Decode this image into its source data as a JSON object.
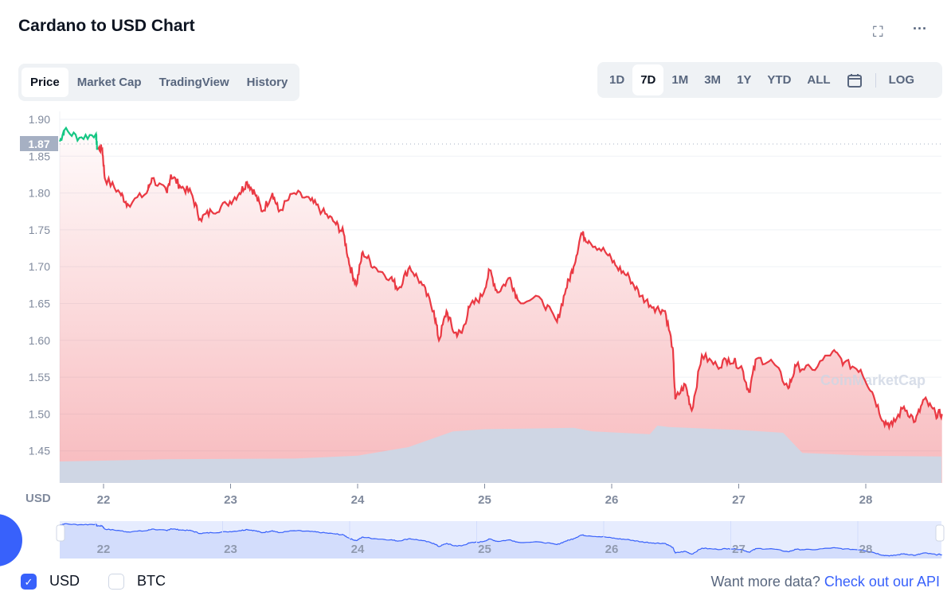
{
  "header": {
    "title": "Cardano to USD Chart",
    "fullscreen_icon": "fullscreen-icon",
    "more_icon": "more-icon"
  },
  "tabs": [
    {
      "label": "Price",
      "active": true
    },
    {
      "label": "Market Cap"
    },
    {
      "label": "TradingView"
    },
    {
      "label": "History"
    }
  ],
  "ranges": [
    {
      "label": "1D"
    },
    {
      "label": "7D",
      "active": true
    },
    {
      "label": "1M"
    },
    {
      "label": "3M"
    },
    {
      "label": "1Y"
    },
    {
      "label": "YTD"
    },
    {
      "label": "ALL"
    }
  ],
  "calendar_icon": "calendar-icon",
  "log_label": "LOG",
  "watermark": "CoinMarketCap",
  "legend": {
    "usd": "USD",
    "btc": "BTC",
    "usd_checked": true,
    "btc_checked": false
  },
  "api": {
    "text": "Want more data?",
    "link": "Check out our API"
  },
  "colors": {
    "up": "#16c784",
    "down": "#ea3943",
    "accent": "#3861fb",
    "volume": "#cfd6e4"
  },
  "chart_data": {
    "type": "line",
    "title": "Cardano to USD Chart",
    "ylabel": "USD",
    "ylim": [
      1.43,
      1.905
    ],
    "yticks": [
      "1.90",
      "1.85",
      "1.80",
      "1.75",
      "1.70",
      "1.65",
      "1.60",
      "1.55",
      "1.50",
      "1.45"
    ],
    "xticks": [
      "22",
      "23",
      "24",
      "25",
      "26",
      "27",
      "28"
    ],
    "xlim": [
      21.65,
      28.6
    ],
    "reference_price": "1.87",
    "grid": true,
    "x": [
      21.655,
      21.69,
      21.81,
      21.94,
      21.95,
      21.99,
      22.01,
      22.13,
      22.19,
      22.34,
      22.38,
      22.5,
      22.53,
      22.6,
      22.69,
      22.76,
      22.85,
      22.97,
      23.07,
      23.13,
      23.19,
      23.25,
      23.33,
      23.38,
      23.5,
      23.63,
      23.72,
      23.82,
      23.89,
      23.94,
      23.99,
      24.04,
      24.13,
      24.26,
      24.32,
      24.41,
      24.51,
      24.6,
      24.64,
      24.7,
      24.76,
      24.82,
      24.88,
      24.98,
      25.04,
      25.1,
      25.2,
      25.26,
      25.45,
      25.57,
      25.64,
      25.7,
      25.76,
      25.82,
      25.95,
      26.04,
      26.14,
      26.23,
      26.33,
      26.42,
      26.48,
      26.5,
      26.58,
      26.63,
      26.71,
      26.83,
      26.92,
      27.02,
      27.08,
      27.14,
      27.27,
      27.39,
      27.45,
      27.58,
      27.74,
      27.83,
      27.96,
      28.05,
      28.14,
      28.21,
      28.3,
      28.39,
      28.46,
      28.55,
      28.6
    ],
    "price": [
      1.87,
      1.885,
      1.875,
      1.88,
      1.86,
      1.86,
      1.82,
      1.8,
      1.785,
      1.8,
      1.82,
      1.8,
      1.825,
      1.81,
      1.8,
      1.765,
      1.775,
      1.785,
      1.8,
      1.815,
      1.8,
      1.775,
      1.8,
      1.775,
      1.8,
      1.79,
      1.775,
      1.76,
      1.745,
      1.7,
      1.675,
      1.72,
      1.7,
      1.685,
      1.67,
      1.7,
      1.675,
      1.64,
      1.6,
      1.64,
      1.61,
      1.61,
      1.645,
      1.66,
      1.695,
      1.665,
      1.685,
      1.655,
      1.655,
      1.625,
      1.67,
      1.7,
      1.745,
      1.735,
      1.72,
      1.7,
      1.685,
      1.66,
      1.645,
      1.64,
      1.59,
      1.52,
      1.54,
      1.505,
      1.58,
      1.565,
      1.575,
      1.565,
      1.53,
      1.575,
      1.57,
      1.535,
      1.565,
      1.56,
      1.585,
      1.57,
      1.56,
      1.53,
      1.49,
      1.485,
      1.51,
      1.49,
      1.52,
      1.5,
      1.5
    ],
    "volume_relative": {
      "x": [
        21.65,
        22.5,
        23.5,
        24.0,
        24.4,
        24.75,
        25.0,
        25.7,
        25.85,
        26.3,
        26.36,
        26.45,
        27.0,
        27.35,
        27.5,
        28.0,
        28.6
      ],
      "v": [
        0.3,
        0.33,
        0.34,
        0.38,
        0.5,
        0.72,
        0.75,
        0.77,
        0.72,
        0.68,
        0.8,
        0.78,
        0.74,
        0.7,
        0.42,
        0.38,
        0.37
      ]
    }
  }
}
